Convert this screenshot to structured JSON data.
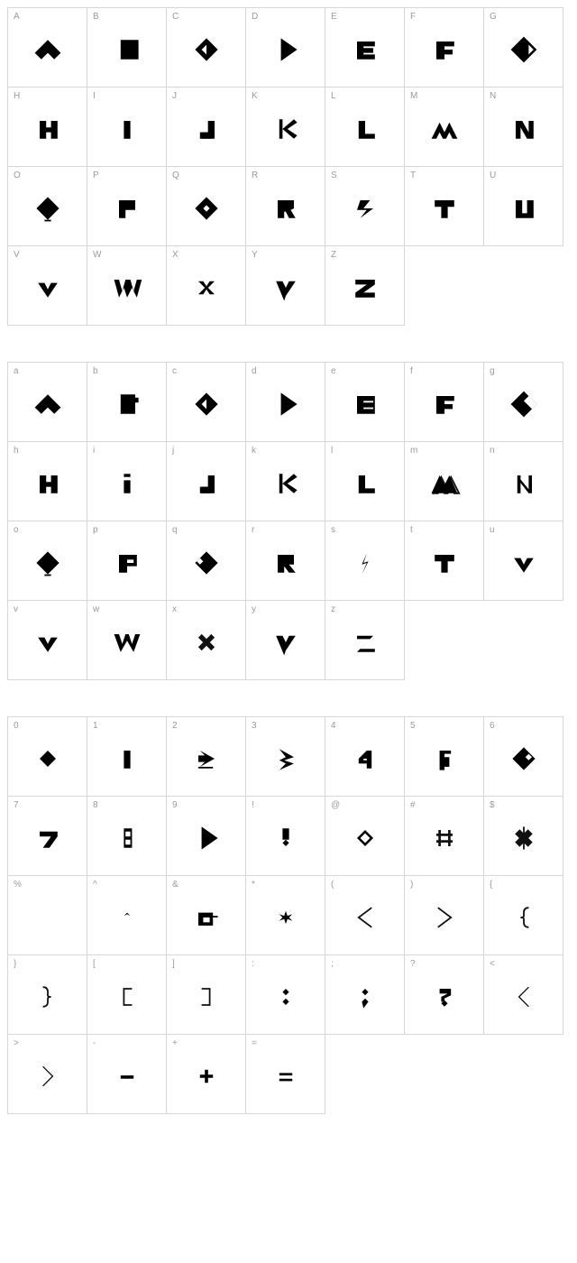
{
  "layout": {
    "cell_size": 89,
    "cols": 7,
    "cell_border_color": "#d6d6d6",
    "label_color": "#9a9a9a",
    "label_fontsize": 10,
    "glyph_color": "#111111",
    "background": "#ffffff",
    "group_gap": 40
  },
  "groups": [
    {
      "name": "uppercase",
      "rows": [
        [
          {
            "label": "A",
            "glyph": "chevron-up-thick"
          },
          {
            "label": "B",
            "glyph": "rect-notch-right"
          },
          {
            "label": "C",
            "glyph": "diamond-left-notch"
          },
          {
            "label": "D",
            "glyph": "diamond-right-point"
          },
          {
            "label": "E",
            "glyph": "bars-block"
          },
          {
            "label": "F",
            "glyph": "f-block"
          },
          {
            "label": "G",
            "glyph": "diamond-cut"
          }
        ],
        [
          {
            "label": "H",
            "glyph": "h-block"
          },
          {
            "label": "I",
            "glyph": "bar-vertical"
          },
          {
            "label": "J",
            "glyph": "j-block"
          },
          {
            "label": "K",
            "glyph": "diamond-k"
          },
          {
            "label": "L",
            "glyph": "l-block"
          },
          {
            "label": "M",
            "glyph": "m-peaks"
          },
          {
            "label": "N",
            "glyph": "n-block"
          }
        ],
        [
          {
            "label": "O",
            "glyph": "diamond-solid"
          },
          {
            "label": "P",
            "glyph": "p-block"
          },
          {
            "label": "Q",
            "glyph": "diamond-dot"
          },
          {
            "label": "R",
            "glyph": "r-block"
          },
          {
            "label": "S",
            "glyph": "s-twist"
          },
          {
            "label": "T",
            "glyph": "t-block"
          },
          {
            "label": "U",
            "glyph": "u-block"
          }
        ],
        [
          {
            "label": "V",
            "glyph": "heart-v"
          },
          {
            "label": "W",
            "glyph": "w-peaks"
          },
          {
            "label": "X",
            "glyph": "x-cross"
          },
          {
            "label": "Y",
            "glyph": "heart-tail"
          },
          {
            "label": "Z",
            "glyph": "z-block"
          }
        ]
      ]
    },
    {
      "name": "lowercase",
      "rows": [
        [
          {
            "label": "a",
            "glyph": "chevron-up-thick"
          },
          {
            "label": "b",
            "glyph": "rect-notch-right2"
          },
          {
            "label": "c",
            "glyph": "diamond-left-notch"
          },
          {
            "label": "d",
            "glyph": "diamond-right-point"
          },
          {
            "label": "e",
            "glyph": "e-block"
          },
          {
            "label": "f",
            "glyph": "f-block"
          },
          {
            "label": "g",
            "glyph": "diamond-cut2"
          }
        ],
        [
          {
            "label": "h",
            "glyph": "h-block"
          },
          {
            "label": "i",
            "glyph": "i-dot"
          },
          {
            "label": "j",
            "glyph": "j-block"
          },
          {
            "label": "k",
            "glyph": "diamond-k"
          },
          {
            "label": "l",
            "glyph": "l-block"
          },
          {
            "label": "m",
            "glyph": "m-peaks2"
          },
          {
            "label": "n",
            "glyph": "n-thin"
          }
        ],
        [
          {
            "label": "o",
            "glyph": "diamond-solid"
          },
          {
            "label": "p",
            "glyph": "p-block2"
          },
          {
            "label": "q",
            "glyph": "diamond-dot2"
          },
          {
            "label": "r",
            "glyph": "r-block2"
          },
          {
            "label": "s",
            "glyph": "s-bolt"
          },
          {
            "label": "t",
            "glyph": "t-block"
          },
          {
            "label": "u",
            "glyph": "heart-v"
          }
        ],
        [
          {
            "label": "v",
            "glyph": "heart-v"
          },
          {
            "label": "w",
            "glyph": "w-peaks2"
          },
          {
            "label": "x",
            "glyph": "x-cross2"
          },
          {
            "label": "y",
            "glyph": "heart-tail"
          },
          {
            "label": "z",
            "glyph": "z-block2"
          }
        ]
      ]
    },
    {
      "name": "numbers-symbols",
      "rows": [
        [
          {
            "label": "0",
            "glyph": "diamond-small"
          },
          {
            "label": "1",
            "glyph": "bar-vertical"
          },
          {
            "label": "2",
            "glyph": "two-arrow"
          },
          {
            "label": "3",
            "glyph": "three-arrow"
          },
          {
            "label": "4",
            "glyph": "four-block"
          },
          {
            "label": "5",
            "glyph": "five-block"
          },
          {
            "label": "6",
            "glyph": "diamond-notch"
          }
        ],
        [
          {
            "label": "7",
            "glyph": "seven-block"
          },
          {
            "label": "8",
            "glyph": "eight-rect"
          },
          {
            "label": "9",
            "glyph": "diamond-right-point"
          },
          {
            "label": "!",
            "glyph": "excl"
          },
          {
            "label": "@",
            "glyph": "at-diamond"
          },
          {
            "label": "#",
            "glyph": "hash"
          },
          {
            "label": "$",
            "glyph": "dollar-x"
          }
        ],
        [
          {
            "label": "%",
            "glyph": ""
          },
          {
            "label": "^",
            "glyph": "caret-small"
          },
          {
            "label": "&",
            "glyph": "amp-block"
          },
          {
            "label": "*",
            "glyph": "asterisk"
          },
          {
            "label": "(",
            "glyph": "angle-left"
          },
          {
            "label": ")",
            "glyph": "angle-right"
          },
          {
            "label": "{",
            "glyph": "brace-left"
          }
        ],
        [
          {
            "label": "}",
            "glyph": "brace-right"
          },
          {
            "label": "[",
            "glyph": "bracket-left"
          },
          {
            "label": "]",
            "glyph": "bracket-right"
          },
          {
            "label": ":",
            "glyph": "colon-diamonds"
          },
          {
            "label": ";",
            "glyph": "semicolon"
          },
          {
            "label": "?",
            "glyph": "question"
          },
          {
            "label": "<",
            "glyph": "angle-left-thin"
          }
        ],
        [
          {
            "label": ">",
            "glyph": "angle-right-thin"
          },
          {
            "label": "-",
            "glyph": "minus"
          },
          {
            "label": "+",
            "glyph": "plus"
          },
          {
            "label": "=",
            "glyph": "equals"
          }
        ]
      ]
    }
  ]
}
